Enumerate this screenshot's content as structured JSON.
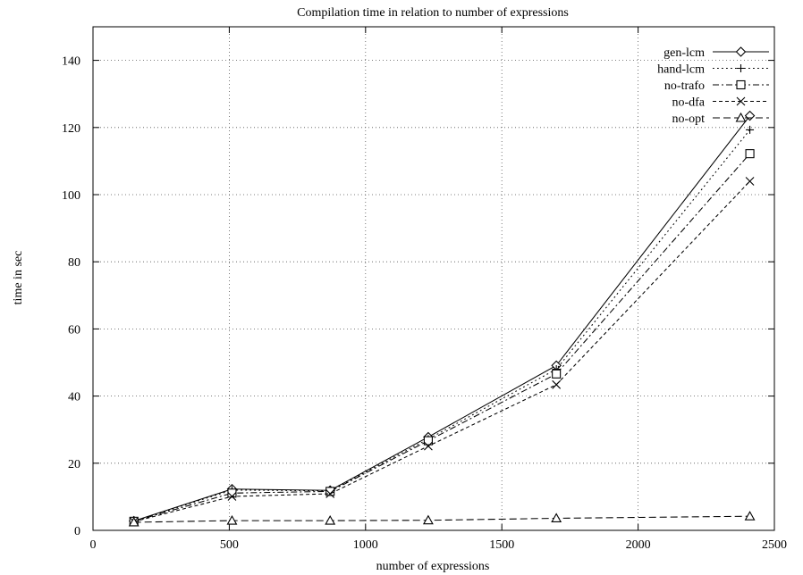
{
  "chart_data": {
    "type": "line",
    "title": "Compilation time in relation to number of expressions",
    "xlabel": "number of expressions",
    "ylabel": "time in sec",
    "xlim": [
      0,
      2500
    ],
    "ylim": [
      0,
      150
    ],
    "xticks": [
      0,
      500,
      1000,
      1500,
      2000,
      2500
    ],
    "yticks": [
      0,
      20,
      40,
      60,
      80,
      100,
      120,
      140
    ],
    "grid": true,
    "legend_position": "top-right",
    "x": [
      150,
      510,
      870,
      1230,
      1700,
      2410
    ],
    "series": [
      {
        "name": "gen-lcm",
        "values": [
          2.8,
          12.3,
          11.9,
          27.8,
          49.1,
          123.5
        ],
        "marker": "diamond",
        "dash": "solid"
      },
      {
        "name": "hand-lcm",
        "values": [
          2.7,
          12.0,
          11.8,
          27.2,
          48.0,
          119.3
        ],
        "marker": "plus",
        "dash": "dotted"
      },
      {
        "name": "no-trafo",
        "values": [
          2.7,
          11.1,
          11.6,
          26.7,
          46.6,
          112.2
        ],
        "marker": "square",
        "dash": "dash-dot"
      },
      {
        "name": "no-dfa",
        "values": [
          2.6,
          10.1,
          10.9,
          25.1,
          43.4,
          104.0
        ],
        "marker": "x",
        "dash": "short-dash"
      },
      {
        "name": "no-opt",
        "values": [
          2.4,
          2.9,
          2.9,
          3.0,
          3.6,
          4.2
        ],
        "marker": "triangle",
        "dash": "long-dash"
      }
    ]
  }
}
